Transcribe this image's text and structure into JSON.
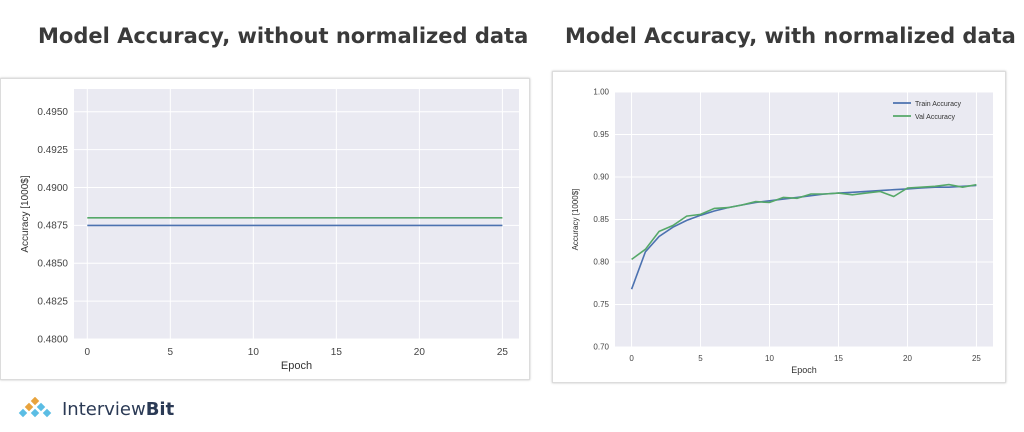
{
  "brand": {
    "name_light": "Interview",
    "name_bold": "Bit"
  },
  "chart_data": [
    {
      "type": "line",
      "title": "Model Accuracy, without normalized data",
      "xlabel": "Epoch",
      "ylabel": "Accuracy [1000$]",
      "xlim": [
        -0.8,
        26
      ],
      "ylim": [
        0.48,
        0.4965
      ],
      "xticks": [
        0,
        5,
        10,
        15,
        20,
        25
      ],
      "yticks": [
        "0.4800",
        "0.4825",
        "0.4850",
        "0.4875",
        "0.4900",
        "0.4925",
        "0.4950"
      ],
      "grid": true,
      "legend": null,
      "series": [
        {
          "color": "#4c72b0",
          "x": [
            0,
            25
          ],
          "y": [
            0.4875,
            0.4875
          ]
        },
        {
          "color": "#55a868",
          "x": [
            0,
            25
          ],
          "y": [
            0.488,
            0.488
          ]
        }
      ]
    },
    {
      "type": "line",
      "title": "Model Accuracy, with normalized data",
      "xlabel": "Epoch",
      "ylabel": "Accuracy [1000$]",
      "xlim": [
        -1.2,
        26.2
      ],
      "ylim": [
        0.7,
        1.0
      ],
      "xticks": [
        0,
        5,
        10,
        15,
        20,
        25
      ],
      "yticks": [
        "0.70",
        "0.75",
        "0.80",
        "0.85",
        "0.90",
        "0.95",
        "1.00"
      ],
      "grid": true,
      "legend": "top-right",
      "series": [
        {
          "name": "Train Accuracy",
          "color": "#4c72b0",
          "x": [
            0,
            1,
            2,
            3,
            4,
            5,
            6,
            7,
            8,
            9,
            10,
            11,
            12,
            13,
            14,
            15,
            16,
            17,
            18,
            19,
            20,
            21,
            22,
            23,
            24,
            25
          ],
          "y": [
            0.768,
            0.812,
            0.83,
            0.841,
            0.849,
            0.855,
            0.86,
            0.864,
            0.867,
            0.87,
            0.872,
            0.874,
            0.876,
            0.878,
            0.88,
            0.881,
            0.882,
            0.883,
            0.884,
            0.885,
            0.886,
            0.887,
            0.888,
            0.888,
            0.889,
            0.89
          ]
        },
        {
          "name": "Val Accuracy",
          "color": "#55a868",
          "x": [
            0,
            1,
            2,
            3,
            4,
            5,
            6,
            7,
            8,
            9,
            10,
            11,
            12,
            13,
            14,
            15,
            16,
            17,
            18,
            19,
            20,
            21,
            22,
            23,
            24,
            25
          ],
          "y": [
            0.803,
            0.815,
            0.836,
            0.843,
            0.854,
            0.856,
            0.863,
            0.864,
            0.867,
            0.871,
            0.87,
            0.876,
            0.875,
            0.88,
            0.88,
            0.881,
            0.879,
            0.881,
            0.883,
            0.877,
            0.887,
            0.888,
            0.889,
            0.891,
            0.888,
            0.891
          ]
        }
      ]
    }
  ]
}
